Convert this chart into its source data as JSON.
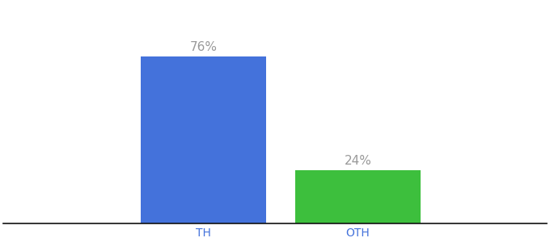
{
  "categories": [
    "TH",
    "OTH"
  ],
  "values": [
    76,
    24
  ],
  "bar_colors": [
    "#4472db",
    "#3dbf3d"
  ],
  "label_texts": [
    "76%",
    "24%"
  ],
  "background_color": "#ffffff",
  "ylim": [
    0,
    100
  ],
  "bar_width": 0.22,
  "label_fontsize": 11,
  "tick_fontsize": 10,
  "label_color": "#999999",
  "tick_color": "#4472db",
  "x_positions": [
    0.4,
    0.67
  ]
}
